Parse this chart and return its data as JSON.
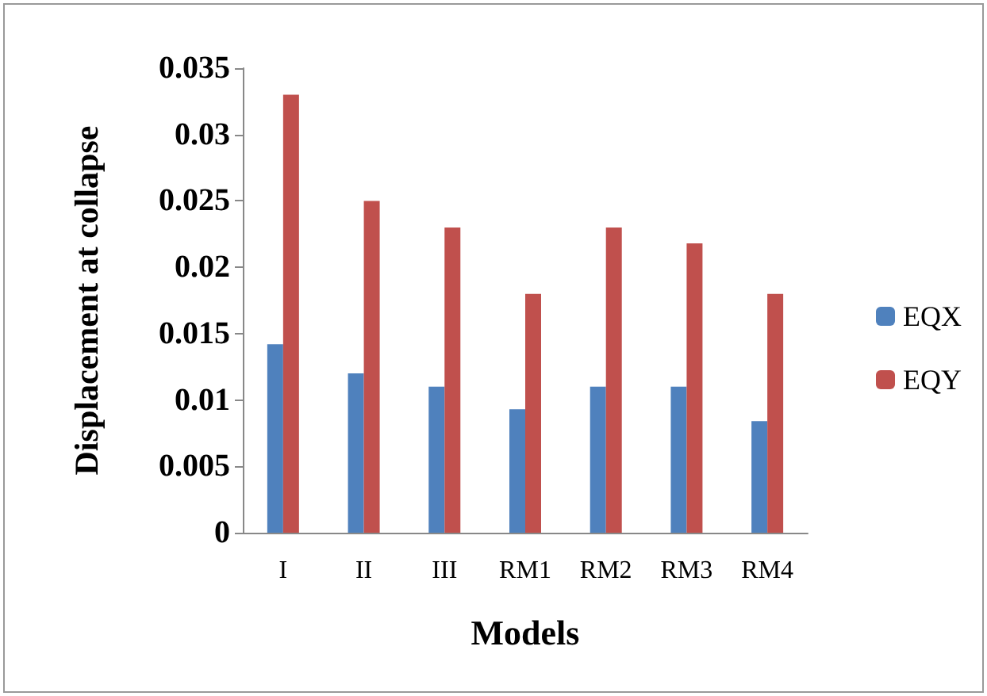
{
  "chart_data": {
    "type": "bar",
    "xlabel": "Models",
    "ylabel": "Displacement at collapse",
    "categories": [
      "I",
      "II",
      "III",
      "RM1",
      "RM2",
      "RM3",
      "RM4"
    ],
    "series": [
      {
        "name": "EQX",
        "color": "#4f81bd",
        "values": [
          0.0142,
          0.012,
          0.011,
          0.0093,
          0.011,
          0.011,
          0.0084
        ]
      },
      {
        "name": "EQY",
        "color": "#c0504d",
        "values": [
          0.033,
          0.025,
          0.023,
          0.018,
          0.023,
          0.0218,
          0.018
        ]
      }
    ],
    "ylim": [
      0,
      0.035
    ],
    "yticks": [
      0,
      0.005,
      0.01,
      0.015,
      0.02,
      0.025,
      0.03,
      0.035
    ],
    "grid": false,
    "legend": "right"
  }
}
